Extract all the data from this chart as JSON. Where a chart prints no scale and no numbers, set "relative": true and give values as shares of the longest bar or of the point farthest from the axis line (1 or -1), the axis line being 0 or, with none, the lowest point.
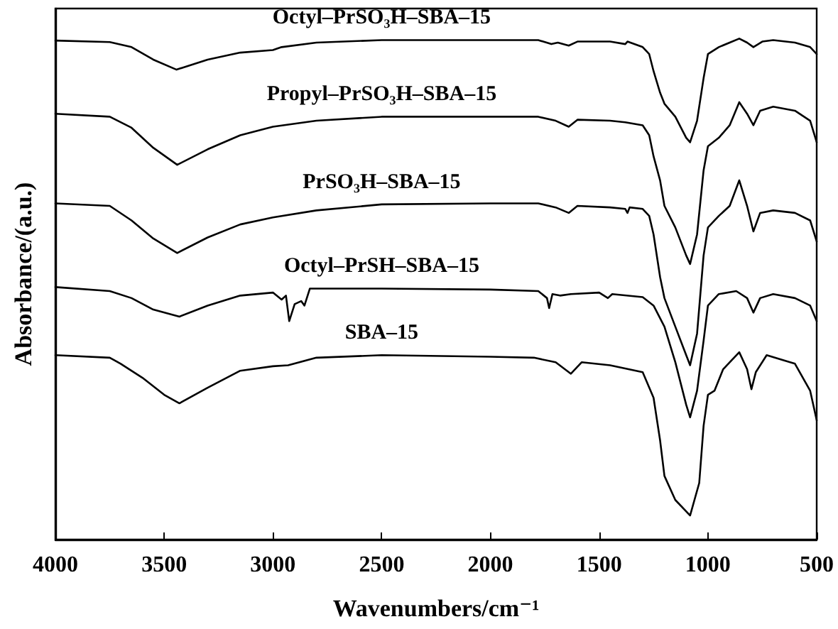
{
  "chart_data": {
    "type": "line",
    "relative": true,
    "xlabel": "Wavenumbers/cm⁻¹",
    "ylabel": "Absorbance/(a.u.)",
    "xlim": [
      4000,
      500
    ],
    "xticks": [
      4000,
      3500,
      3000,
      2500,
      2000,
      1500,
      1000,
      500
    ],
    "tick_labels": "x",
    "grid": false,
    "legend": false,
    "marker": "none",
    "line_style": "solid",
    "series": [
      {
        "name": "Octyl–PrSO₃H–SBA–15",
        "color": "#000000",
        "x": [
          4000,
          3750,
          3650,
          3550,
          3443,
          3300,
          3150,
          3000,
          2960,
          2800,
          2500,
          2000,
          1780,
          1720,
          1690,
          1640,
          1600,
          1450,
          1380,
          1370,
          1300,
          1270,
          1250,
          1220,
          1200,
          1150,
          1100,
          1082,
          1050,
          1020,
          1000,
          950,
          900,
          856,
          820,
          791,
          750,
          700,
          600,
          530,
          500
        ],
        "values": [
          0.996,
          0.993,
          0.983,
          0.958,
          0.938,
          0.958,
          0.972,
          0.977,
          0.983,
          0.992,
          0.997,
          0.997,
          0.997,
          0.989,
          0.992,
          0.986,
          0.994,
          0.994,
          0.989,
          0.994,
          0.983,
          0.969,
          0.935,
          0.892,
          0.87,
          0.844,
          0.802,
          0.793,
          0.836,
          0.921,
          0.969,
          0.983,
          0.992,
          1.0,
          0.992,
          0.983,
          0.994,
          0.997,
          0.992,
          0.983,
          0.969
        ]
      },
      {
        "name": "Propyl–PrSO₃H–SBA–15",
        "color": "#000000",
        "x": [
          4000,
          3750,
          3650,
          3550,
          3440,
          3300,
          3150,
          3000,
          2800,
          2500,
          2000,
          1780,
          1700,
          1640,
          1600,
          1450,
          1380,
          1300,
          1270,
          1250,
          1220,
          1200,
          1150,
          1100,
          1082,
          1050,
          1020,
          1000,
          950,
          900,
          856,
          820,
          791,
          760,
          700,
          600,
          530,
          500
        ],
        "values": [
          0.85,
          0.844,
          0.822,
          0.782,
          0.748,
          0.779,
          0.807,
          0.824,
          0.836,
          0.844,
          0.844,
          0.844,
          0.836,
          0.824,
          0.838,
          0.836,
          0.833,
          0.827,
          0.807,
          0.765,
          0.717,
          0.666,
          0.623,
          0.567,
          0.55,
          0.609,
          0.737,
          0.785,
          0.802,
          0.827,
          0.873,
          0.85,
          0.827,
          0.856,
          0.864,
          0.856,
          0.836,
          0.793
        ]
      },
      {
        "name": "PrSO₃H–SBA–15",
        "color": "#000000",
        "x": [
          4000,
          3750,
          3650,
          3550,
          3440,
          3300,
          3150,
          3000,
          2800,
          2500,
          2000,
          1780,
          1700,
          1640,
          1600,
          1450,
          1380,
          1370,
          1360,
          1300,
          1270,
          1250,
          1220,
          1200,
          1150,
          1100,
          1082,
          1050,
          1020,
          1000,
          950,
          900,
          856,
          820,
          791,
          760,
          700,
          600,
          530,
          500
        ],
        "values": [
          0.671,
          0.666,
          0.637,
          0.601,
          0.572,
          0.603,
          0.629,
          0.643,
          0.657,
          0.669,
          0.671,
          0.671,
          0.663,
          0.652,
          0.666,
          0.663,
          0.66,
          0.652,
          0.663,
          0.66,
          0.646,
          0.609,
          0.524,
          0.482,
          0.425,
          0.368,
          0.348,
          0.411,
          0.567,
          0.623,
          0.646,
          0.666,
          0.717,
          0.666,
          0.615,
          0.652,
          0.657,
          0.652,
          0.637,
          0.595
        ]
      },
      {
        "name": "Octyl–PrSH–SBA–15",
        "color": "#000000",
        "x": [
          4000,
          3750,
          3650,
          3550,
          3430,
          3300,
          3150,
          3000,
          2960,
          2940,
          2925,
          2900,
          2870,
          2855,
          2830,
          2500,
          2000,
          1780,
          1740,
          1730,
          1715,
          1680,
          1630,
          1500,
          1460,
          1440,
          1300,
          1250,
          1200,
          1150,
          1100,
          1082,
          1050,
          1020,
          1000,
          950,
          870,
          820,
          791,
          760,
          700,
          600,
          530,
          500
        ],
        "values": [
          0.504,
          0.496,
          0.482,
          0.459,
          0.445,
          0.467,
          0.487,
          0.493,
          0.479,
          0.487,
          0.436,
          0.47,
          0.476,
          0.467,
          0.501,
          0.501,
          0.499,
          0.496,
          0.482,
          0.462,
          0.49,
          0.487,
          0.49,
          0.493,
          0.482,
          0.49,
          0.484,
          0.467,
          0.425,
          0.354,
          0.269,
          0.244,
          0.297,
          0.397,
          0.467,
          0.49,
          0.496,
          0.482,
          0.453,
          0.482,
          0.49,
          0.482,
          0.467,
          0.436
        ]
      },
      {
        "name": "SBA–15",
        "color": "#000000",
        "x": [
          4000,
          3750,
          3700,
          3600,
          3500,
          3430,
          3300,
          3150,
          3000,
          2930,
          2800,
          2500,
          2000,
          1800,
          1700,
          1630,
          1580,
          1450,
          1300,
          1250,
          1220,
          1200,
          1150,
          1082,
          1040,
          1020,
          1000,
          970,
          930,
          856,
          820,
          800,
          780,
          730,
          600,
          530,
          500
        ],
        "values": [
          0.368,
          0.363,
          0.351,
          0.323,
          0.289,
          0.272,
          0.303,
          0.337,
          0.346,
          0.348,
          0.363,
          0.368,
          0.365,
          0.363,
          0.354,
          0.331,
          0.354,
          0.348,
          0.334,
          0.283,
          0.198,
          0.127,
          0.079,
          0.048,
          0.113,
          0.227,
          0.289,
          0.297,
          0.34,
          0.374,
          0.34,
          0.3,
          0.334,
          0.368,
          0.351,
          0.297,
          0.238
        ]
      }
    ]
  }
}
